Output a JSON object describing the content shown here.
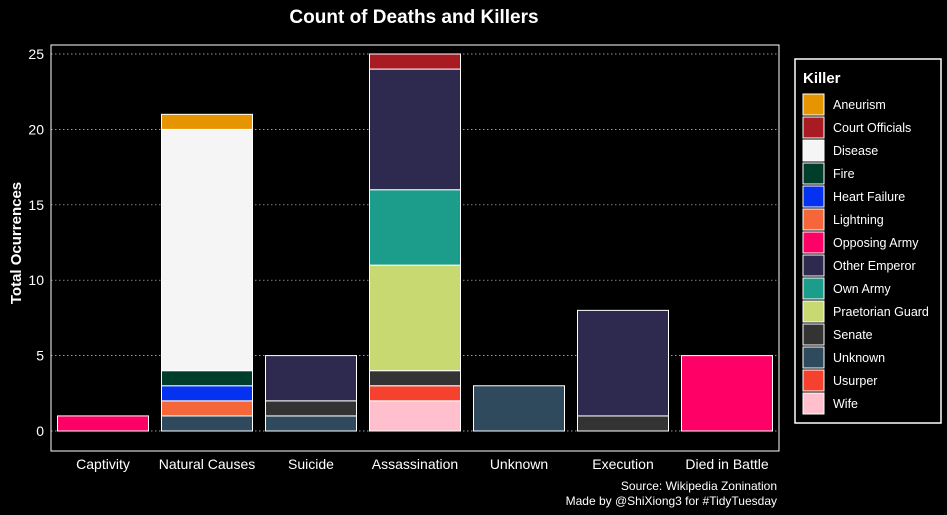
{
  "chart_data": {
    "type": "bar",
    "stacked": true,
    "title": "Count of Deaths and Killers",
    "xlabel": "",
    "ylabel": "Total Ocurrences",
    "ylim": [
      0,
      26
    ],
    "yticks": [
      0,
      5,
      10,
      15,
      20,
      25
    ],
    "grid": true,
    "legend_position": "right",
    "legend_title": "Killer",
    "categories": [
      "Captivity",
      "Natural Causes",
      "Suicide",
      "Assassination",
      "Unknown",
      "Execution",
      "Died in Battle"
    ],
    "series": [
      {
        "name": "Unknown",
        "color": "#2f4a5c",
        "values": [
          0,
          1,
          1,
          0,
          3,
          0,
          0
        ]
      },
      {
        "name": "Wife",
        "color": "#ffbfcc",
        "values": [
          0,
          0,
          0,
          2,
          0,
          0,
          0
        ]
      },
      {
        "name": "Usurper",
        "color": "#f5412e",
        "values": [
          0,
          0,
          0,
          1,
          0,
          0,
          0
        ]
      },
      {
        "name": "Senate",
        "color": "#333333",
        "values": [
          0,
          0,
          1,
          1,
          0,
          1,
          0
        ]
      },
      {
        "name": "Lightning",
        "color": "#f5673b",
        "values": [
          0,
          1,
          0,
          0,
          0,
          0,
          0
        ]
      },
      {
        "name": "Heart Failure",
        "color": "#0531f0",
        "values": [
          0,
          1,
          0,
          0,
          0,
          0,
          0
        ]
      },
      {
        "name": "Fire",
        "color": "#003d2a",
        "values": [
          0,
          1,
          0,
          0,
          0,
          0,
          0
        ]
      },
      {
        "name": "Opposing Army",
        "color": "#ff0066",
        "values": [
          1,
          0,
          0,
          0,
          0,
          0,
          5
        ]
      },
      {
        "name": "Praetorian Guard",
        "color": "#c9d972",
        "values": [
          0,
          0,
          0,
          7,
          0,
          0,
          0
        ]
      },
      {
        "name": "Own Army",
        "color": "#1c9c8a",
        "values": [
          0,
          0,
          0,
          5,
          0,
          0,
          0
        ]
      },
      {
        "name": "Other Emperor",
        "color": "#2e2a4f",
        "values": [
          0,
          0,
          3,
          8,
          0,
          7,
          0
        ]
      },
      {
        "name": "Disease",
        "color": "#f5f5f5",
        "values": [
          0,
          16,
          0,
          0,
          0,
          0,
          0
        ]
      },
      {
        "name": "Court Officials",
        "color": "#a81b22",
        "values": [
          0,
          0,
          0,
          1,
          0,
          0,
          0
        ]
      },
      {
        "name": "Aneurism",
        "color": "#e69500",
        "values": [
          0,
          1,
          0,
          0,
          0,
          0,
          0
        ]
      }
    ],
    "legend_entries": [
      {
        "label": "Aneurism",
        "color": "#e69500"
      },
      {
        "label": "Court Officials",
        "color": "#a81b22"
      },
      {
        "label": "Disease",
        "color": "#f5f5f5"
      },
      {
        "label": "Fire",
        "color": "#003d2a"
      },
      {
        "label": "Heart Failure",
        "color": "#0531f0"
      },
      {
        "label": "Lightning",
        "color": "#f5673b"
      },
      {
        "label": "Opposing Army",
        "color": "#ff0066"
      },
      {
        "label": "Other Emperor",
        "color": "#2e2a4f"
      },
      {
        "label": "Own Army",
        "color": "#1c9c8a"
      },
      {
        "label": "Praetorian Guard",
        "color": "#c9d972"
      },
      {
        "label": "Senate",
        "color": "#333333"
      },
      {
        "label": "Unknown",
        "color": "#2f4a5c"
      },
      {
        "label": "Usurper",
        "color": "#f5412e"
      },
      {
        "label": "Wife",
        "color": "#ffbfcc"
      }
    ],
    "caption": [
      "Source: Wikipedia Zonination",
      "Made by @ShiXiong3 for #TidyTuesday"
    ]
  }
}
